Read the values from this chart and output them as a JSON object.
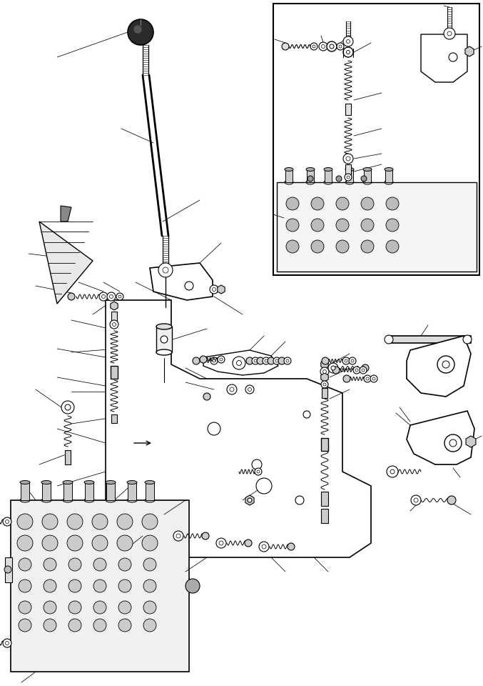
{
  "bg_color": "#ffffff",
  "line_color": "#000000",
  "fig_width": 6.77,
  "fig_height": 9.6,
  "dpi": 100
}
